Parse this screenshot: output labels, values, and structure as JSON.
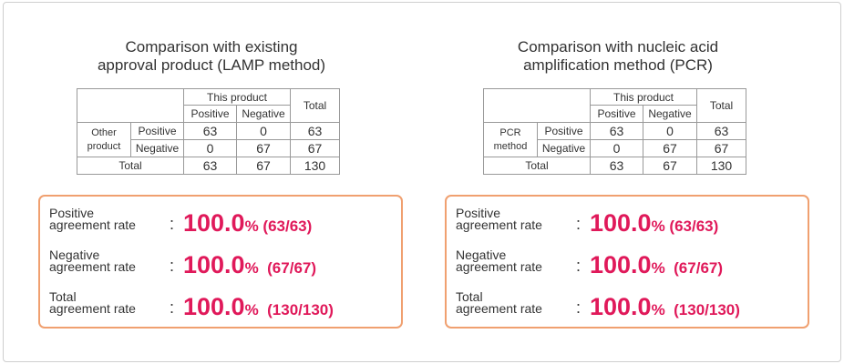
{
  "panels": [
    {
      "title_line1": "Comparison with existing",
      "title_line2": "approval product (LAMP method)",
      "table": {
        "this_product": "This product",
        "total_header": "Total",
        "col_positive": "Positive",
        "col_negative": "Negative",
        "row_group_line1": "Other",
        "row_group_line2": "product",
        "row_positive": "Positive",
        "row_negative": "Negative",
        "row_total": "Total",
        "pp": "63",
        "pn": "0",
        "pt": "63",
        "np": "0",
        "nn": "67",
        "nt": "67",
        "tp": "63",
        "tn": "67",
        "tt": "130"
      },
      "rates": [
        {
          "label1": "Positive",
          "label2": "agreement rate",
          "colon": ":",
          "value": "100.0",
          "pct": "%",
          "frac": " (63/63)"
        },
        {
          "label1": "Negative",
          "label2": "agreement rate",
          "colon": ":",
          "value": "100.0",
          "pct": "%",
          "frac": "  (67/67)"
        },
        {
          "label1": "Total",
          "label2": "agreement rate",
          "colon": ":",
          "value": "100.0",
          "pct": "%",
          "frac": "  (130/130)"
        }
      ]
    },
    {
      "title_line1": "Comparison with nucleic acid",
      "title_line2": "amplification method (PCR)",
      "table": {
        "this_product": "This product",
        "total_header": "Total",
        "col_positive": "Positive",
        "col_negative": "Negative",
        "row_group_line1": "PCR",
        "row_group_line2": "method",
        "row_positive": "Positive",
        "row_negative": "Negative",
        "row_total": "Total",
        "pp": "63",
        "pn": "0",
        "pt": "63",
        "np": "0",
        "nn": "67",
        "nt": "67",
        "tp": "63",
        "tn": "67",
        "tt": "130"
      },
      "rates": [
        {
          "label1": "Positive",
          "label2": "agreement rate",
          "colon": ":",
          "value": "100.0",
          "pct": "%",
          "frac": " (63/63)"
        },
        {
          "label1": "Negative",
          "label2": "agreement rate",
          "colon": ":",
          "value": "100.0",
          "pct": "%",
          "frac": "  (67/67)"
        },
        {
          "label1": "Total",
          "label2": "agreement rate",
          "colon": ":",
          "value": "100.0",
          "pct": "%",
          "frac": "  (130/130)"
        }
      ]
    }
  ],
  "colors": {
    "accent": "#e0195a",
    "border": "#f0a070"
  }
}
